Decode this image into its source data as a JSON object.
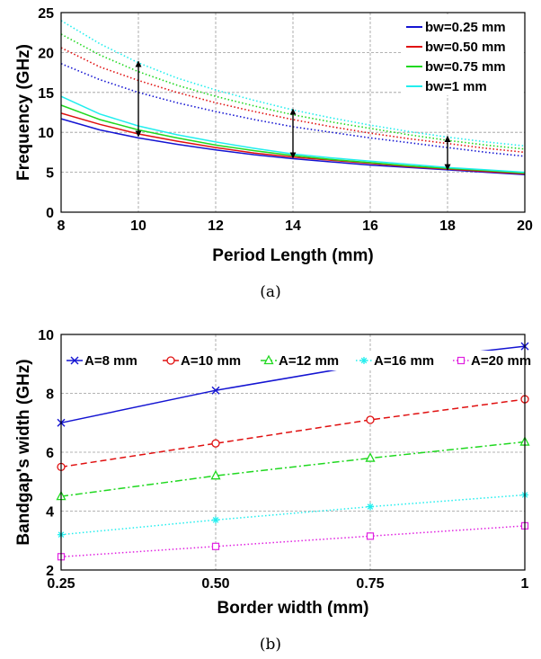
{
  "captions": [
    "(a)",
    "(b)"
  ],
  "colors": {
    "blue": "#1414d2",
    "red": "#e01010",
    "green": "#20d820",
    "cyan": "#22eeee",
    "magenta": "#e020e0",
    "black": "#000000"
  },
  "chart_data": [
    {
      "type": "line",
      "title": "",
      "xlabel": "Period Length (mm)",
      "ylabel": "Frequency (GHz)",
      "xlim": [
        8,
        20
      ],
      "ylim": [
        0,
        25
      ],
      "xticks": [
        8,
        10,
        12,
        14,
        16,
        18,
        20
      ],
      "yticks": [
        0,
        5,
        10,
        15,
        20,
        25
      ],
      "grid": true,
      "legend_position": "top-right",
      "legend": [
        "bw=0.25 mm",
        "bw=0.50 mm",
        "bw=0.75 mm",
        "bw=1 mm"
      ],
      "x": [
        8,
        9,
        10,
        11,
        12,
        13,
        14,
        15,
        16,
        17,
        18,
        19,
        20
      ],
      "series": [
        {
          "name": "bw=0.25 mm",
          "curve": "lower",
          "style": "solid",
          "color": "blue",
          "values": [
            11.7,
            10.3,
            9.3,
            8.5,
            7.8,
            7.2,
            6.7,
            6.3,
            5.9,
            5.6,
            5.3,
            5.0,
            4.7
          ]
        },
        {
          "name": "bw=0.50 mm",
          "curve": "lower",
          "style": "solid",
          "color": "red",
          "values": [
            12.4,
            11.0,
            9.8,
            8.9,
            8.1,
            7.4,
            6.9,
            6.5,
            6.1,
            5.7,
            5.4,
            5.1,
            4.8
          ]
        },
        {
          "name": "bw=0.75 mm",
          "curve": "lower",
          "style": "solid",
          "color": "green",
          "values": [
            13.4,
            11.6,
            10.3,
            9.3,
            8.4,
            7.7,
            7.1,
            6.6,
            6.2,
            5.8,
            5.5,
            5.2,
            4.9
          ]
        },
        {
          "name": "bw=1 mm",
          "curve": "lower",
          "style": "solid",
          "color": "cyan",
          "values": [
            14.5,
            12.3,
            10.8,
            9.7,
            8.8,
            8.0,
            7.3,
            6.8,
            6.4,
            6.0,
            5.6,
            5.3,
            5.0
          ]
        },
        {
          "name": "bw=0.25 mm",
          "curve": "upper",
          "style": "dotted",
          "color": "blue",
          "values": [
            18.6,
            16.6,
            15.0,
            13.7,
            12.6,
            11.6,
            10.7,
            10.0,
            9.3,
            8.7,
            8.1,
            7.5,
            7.0
          ]
        },
        {
          "name": "bw=0.50 mm",
          "curve": "upper",
          "style": "dotted",
          "color": "red",
          "values": [
            20.6,
            18.2,
            16.5,
            15.0,
            13.7,
            12.6,
            11.6,
            10.7,
            9.9,
            9.2,
            8.6,
            8.0,
            7.5
          ]
        },
        {
          "name": "bw=0.75 mm",
          "curve": "upper",
          "style": "dotted",
          "color": "green",
          "values": [
            22.3,
            19.7,
            17.6,
            15.9,
            14.5,
            13.3,
            12.2,
            11.3,
            10.5,
            9.7,
            9.0,
            8.4,
            7.9
          ]
        },
        {
          "name": "bw=1 mm",
          "curve": "upper",
          "style": "dotted",
          "color": "cyan",
          "values": [
            24.0,
            21.1,
            18.7,
            16.8,
            15.3,
            14.0,
            12.8,
            11.8,
            10.9,
            10.1,
            9.4,
            8.8,
            8.3
          ]
        }
      ],
      "annotations": [
        {
          "type": "double-arrow",
          "x": 10,
          "y_from": 9.5,
          "y_to": 18.9
        },
        {
          "type": "double-arrow",
          "x": 14,
          "y_from": 6.8,
          "y_to": 12.9
        },
        {
          "type": "double-arrow",
          "x": 18,
          "y_from": 5.3,
          "y_to": 9.5
        }
      ]
    },
    {
      "type": "line",
      "title": "",
      "xlabel": "Border width (mm)",
      "ylabel": "Bandgap's width (GHz)",
      "categories": [
        "0.25",
        "0.50",
        "0.75",
        "1"
      ],
      "x": [
        0.25,
        0.5,
        0.75,
        1
      ],
      "xlim": [
        0.25,
        1
      ],
      "ylim": [
        2,
        10
      ],
      "yticks": [
        2,
        4,
        6,
        8,
        10
      ],
      "grid": true,
      "legend_position": "top",
      "series": [
        {
          "name": "A=8 mm",
          "color": "blue",
          "style": "solid",
          "marker": "x",
          "values": [
            7.0,
            8.1,
            9.0,
            9.6
          ]
        },
        {
          "name": "A=10 mm",
          "color": "red",
          "style": "dashed",
          "marker": "o",
          "values": [
            5.5,
            6.3,
            7.1,
            7.8
          ]
        },
        {
          "name": "A=12 mm",
          "color": "green",
          "style": "dashdot",
          "marker": "^",
          "values": [
            4.5,
            5.2,
            5.8,
            6.35
          ]
        },
        {
          "name": "A=16 mm",
          "color": "cyan",
          "style": "dotted",
          "marker": "*",
          "values": [
            3.2,
            3.7,
            4.15,
            4.55
          ]
        },
        {
          "name": "A=20 mm",
          "color": "magenta",
          "style": "dotted",
          "marker": "s",
          "values": [
            2.45,
            2.8,
            3.15,
            3.5
          ]
        }
      ]
    }
  ]
}
